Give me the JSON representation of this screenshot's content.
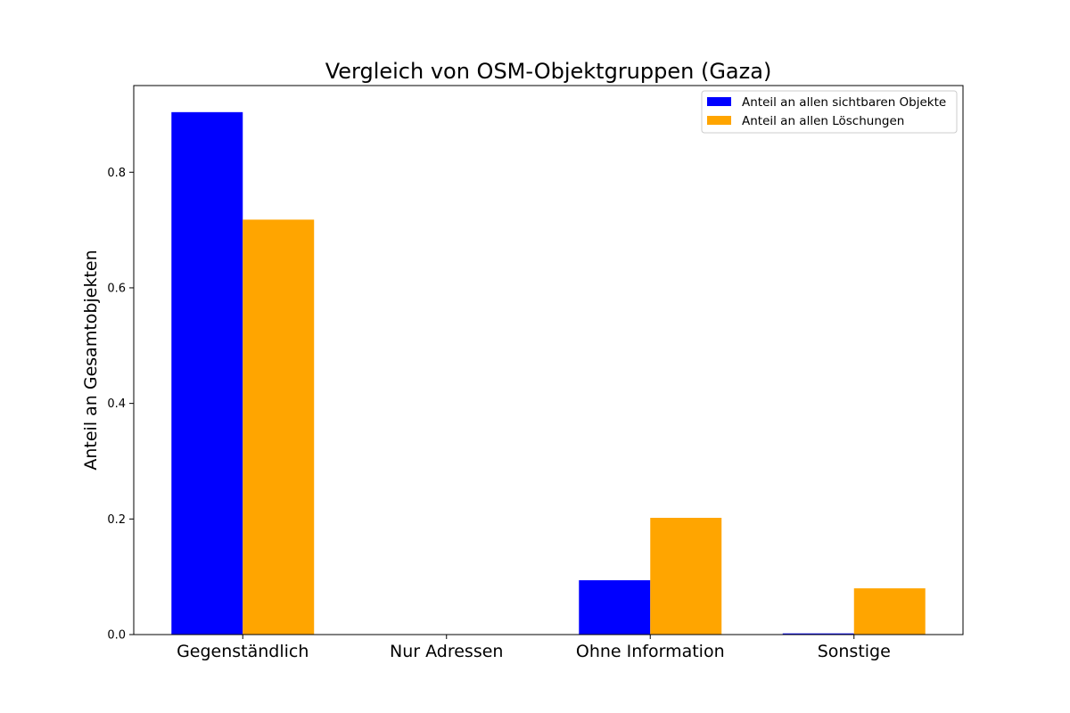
{
  "chart_data": {
    "type": "bar",
    "title": "Vergleich von OSM-Objektgruppen (Gaza)",
    "xlabel": "",
    "ylabel": "Anteil an Gesamtobjekten",
    "categories": [
      "Gegenständlich",
      "Nur Adressen",
      "Ohne Information",
      "Sonstige"
    ],
    "series": [
      {
        "name": "Anteil an allen sichtbaren Objekte",
        "color": "#0000ff",
        "values": [
          0.904,
          0.0,
          0.094,
          0.002
        ]
      },
      {
        "name": "Anteil an allen Löschungen",
        "color": "#ffa500",
        "values": [
          0.718,
          0.0,
          0.202,
          0.08
        ]
      }
    ],
    "ylim": [
      0,
      0.95
    ],
    "yticks": [
      0.0,
      0.2,
      0.4,
      0.6,
      0.8
    ],
    "ytick_labels": [
      "0.0",
      "0.2",
      "0.4",
      "0.6",
      "0.8"
    ],
    "grid": false,
    "legend_position": "top-right"
  }
}
